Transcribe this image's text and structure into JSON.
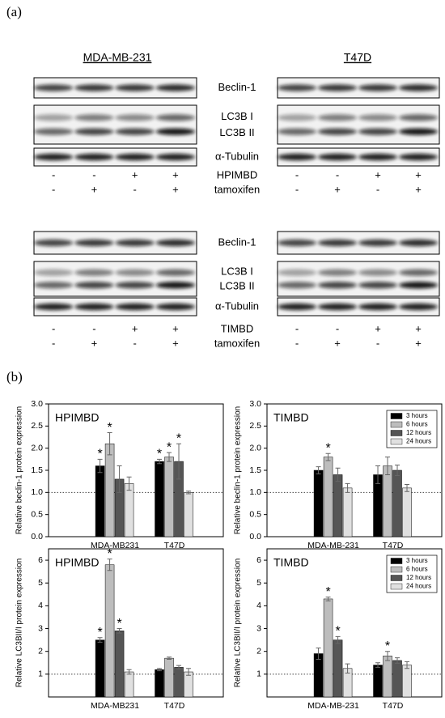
{
  "figure": {
    "panel_a": {
      "label": "(a)",
      "cell_lines": [
        "MDA-MB-231",
        "T47D"
      ],
      "blots": [
        {
          "proteins": [
            "Beclin-1",
            "LC3B I",
            "LC3B II",
            "α-Tubulin"
          ],
          "treatments": [
            {
              "name": "HPIMBD",
              "signs": [
                [
                  "-",
                  "-",
                  "+",
                  "+"
                ],
                [
                  "-",
                  "-",
                  "+",
                  "+"
                ]
              ]
            },
            {
              "name": "tamoxifen",
              "signs": [
                [
                  "-",
                  "+",
                  "-",
                  "+"
                ],
                [
                  "-",
                  "+",
                  "-",
                  "+"
                ]
              ]
            }
          ]
        },
        {
          "proteins": [
            "Beclin-1",
            "LC3B I",
            "LC3B II",
            "α-Tubulin"
          ],
          "treatments": [
            {
              "name": "TIMBD",
              "signs": [
                [
                  "-",
                  "-",
                  "+",
                  "+"
                ],
                [
                  "-",
                  "-",
                  "+",
                  "+"
                ]
              ]
            },
            {
              "name": "tamoxifen",
              "signs": [
                [
                  "-",
                  "+",
                  "-",
                  "+"
                ],
                [
                  "-",
                  "+",
                  "-",
                  "+"
                ]
              ]
            }
          ]
        }
      ]
    },
    "panel_b": {
      "label": "(b)"
    }
  },
  "chart_data": [
    {
      "type": "bar",
      "title": "HPIMBD",
      "ylabel": "Relative beclin-1 protein expression",
      "categories": [
        "MDA-MB231",
        "T47D"
      ],
      "reference_line": 1,
      "ylim": [
        0,
        3
      ],
      "yticks": [
        {
          "value": 0,
          "label": "0.0"
        },
        0.5,
        {
          "value": 1,
          "label": "1.0"
        },
        1.5,
        {
          "value": 2,
          "label": "2.0"
        },
        2.5,
        {
          "value": 3,
          "label": "3.0"
        }
      ],
      "series": [
        {
          "color": "#000000",
          "values": [
            1.6,
            1.7
          ],
          "errors": [
            0.15,
            0.05
          ],
          "annotations": [
            "*",
            "*"
          ]
        },
        {
          "color": "#bdbdbd",
          "values": [
            2.1,
            1.8
          ],
          "errors": [
            0.25,
            0.1
          ],
          "annotations": [
            "*",
            "*"
          ]
        },
        {
          "color": "#555555",
          "values": [
            1.3,
            1.7
          ],
          "errors": [
            0.3,
            0.4
          ],
          "annotations": [
            null,
            "*"
          ]
        },
        {
          "color": "#e0e0e0",
          "values": [
            1.2,
            1.0
          ],
          "errors": [
            0.15,
            0.03
          ],
          "annotations": [
            null,
            null
          ]
        }
      ]
    },
    {
      "type": "bar",
      "title": "TIMBD",
      "ylabel": "Relative beclin-1 protein expression",
      "categories": [
        "MDA-MB-231",
        "T47D"
      ],
      "reference_line": 1,
      "legend": "upper right",
      "ylim": [
        0,
        3
      ],
      "yticks": [
        {
          "value": 0,
          "label": "0.0"
        },
        0.5,
        {
          "value": 1,
          "label": "1.0"
        },
        1.5,
        {
          "value": 2,
          "label": "2.0"
        },
        2.5,
        {
          "value": 3,
          "label": "3.0"
        }
      ],
      "series": [
        {
          "name": "3 hours",
          "color": "#000000",
          "values": [
            1.5,
            1.4
          ],
          "errors": [
            0.08,
            0.2
          ],
          "annotations": [
            null,
            null
          ]
        },
        {
          "name": "6 hours",
          "color": "#bdbdbd",
          "values": [
            1.8,
            1.6
          ],
          "errors": [
            0.08,
            0.2
          ],
          "annotations": [
            "*",
            null
          ]
        },
        {
          "name": "12 hours",
          "color": "#555555",
          "values": [
            1.4,
            1.5
          ],
          "errors": [
            0.15,
            0.12
          ],
          "annotations": [
            null,
            null
          ]
        },
        {
          "name": "24 hours",
          "color": "#e0e0e0",
          "values": [
            1.1,
            1.1
          ],
          "errors": [
            0.1,
            0.08
          ],
          "annotations": [
            null,
            null
          ]
        }
      ]
    },
    {
      "type": "bar",
      "title": "HPIMBD",
      "ylabel": "Relative LC3BII/I protein expression",
      "categories": [
        "MDA-MB231",
        "T47D"
      ],
      "reference_line": 1,
      "ylim": [
        0,
        6.5
      ],
      "yticks": [
        1,
        2,
        3,
        4,
        5,
        6
      ],
      "series": [
        {
          "color": "#000000",
          "values": [
            2.5,
            1.2
          ],
          "errors": [
            0.1,
            0.05
          ],
          "annotations": [
            "*",
            null
          ]
        },
        {
          "color": "#bdbdbd",
          "values": [
            5.8,
            1.7
          ],
          "errors": [
            0.25,
            0.05
          ],
          "annotations": [
            "*",
            null
          ]
        },
        {
          "color": "#555555",
          "values": [
            2.9,
            1.3
          ],
          "errors": [
            0.1,
            0.08
          ],
          "annotations": [
            "*",
            null
          ]
        },
        {
          "color": "#e0e0e0",
          "values": [
            1.1,
            1.1
          ],
          "errors": [
            0.1,
            0.15
          ],
          "annotations": [
            null,
            null
          ]
        }
      ]
    },
    {
      "type": "bar",
      "title": "TIMBD",
      "ylabel": "Relative LC3BII/I protein expression",
      "categories": [
        "MDA-MB-231",
        "T47D"
      ],
      "reference_line": 1,
      "legend": "upper right",
      "ylim": [
        0,
        6.5
      ],
      "yticks": [
        1,
        2,
        3,
        4,
        5,
        6
      ],
      "series": [
        {
          "name": "3 hours",
          "color": "#000000",
          "values": [
            1.9,
            1.4
          ],
          "errors": [
            0.25,
            0.1
          ],
          "annotations": [
            null,
            null
          ]
        },
        {
          "name": "6 hours",
          "color": "#bdbdbd",
          "values": [
            4.3,
            1.8
          ],
          "errors": [
            0.08,
            0.2
          ],
          "annotations": [
            "*",
            "*"
          ]
        },
        {
          "name": "12 hours",
          "color": "#555555",
          "values": [
            2.5,
            1.6
          ],
          "errors": [
            0.15,
            0.12
          ],
          "annotations": [
            "*",
            null
          ]
        },
        {
          "name": "24 hours",
          "color": "#e0e0e0",
          "values": [
            1.25,
            1.4
          ],
          "errors": [
            0.2,
            0.15
          ],
          "annotations": [
            null,
            null
          ]
        }
      ]
    }
  ]
}
